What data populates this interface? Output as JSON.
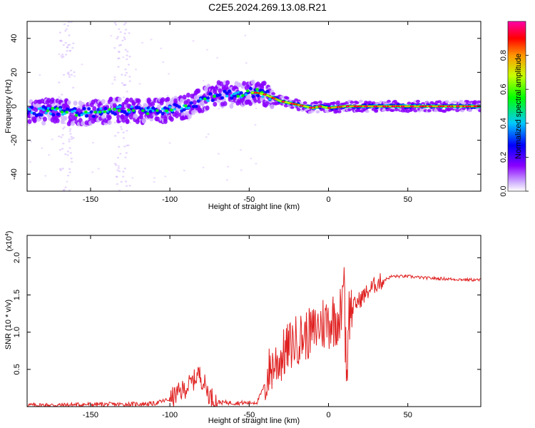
{
  "title": "C2E5.2024.269.13.08.R21",
  "chart_data": [
    {
      "type": "heatmap",
      "xlabel": "Height of straight line (km)",
      "ylabel": "Frequency (Hz)",
      "xlim": [
        -190,
        96
      ],
      "ylim": [
        -50,
        50
      ],
      "xticks": [
        -150,
        -100,
        -50,
        0,
        50
      ],
      "yticks": [
        -40,
        -20,
        0,
        20,
        40
      ],
      "ridge": {
        "x": [
          -190,
          -170,
          -150,
          -130,
          -110,
          -100,
          -90,
          -80,
          -70,
          -60,
          -55,
          -50,
          -45,
          -40,
          -35,
          -30,
          -25,
          -20,
          -15,
          -10,
          -5,
          0,
          10,
          20,
          50,
          96
        ],
        "freq": [
          -3,
          -3,
          -4,
          -2,
          -3,
          -2,
          0,
          3,
          7,
          7,
          6,
          8,
          8,
          7,
          5,
          3,
          2,
          1,
          0,
          -1,
          0,
          -1,
          0,
          0,
          0,
          0
        ]
      },
      "colorbar": {
        "label": "Normalized spectral amplitude",
        "ticks": [
          "0.0",
          "0.2",
          "0.4",
          "0.6",
          "0.8"
        ],
        "stops": [
          "#ffffff",
          "#d2b4ff",
          "#8a00ff",
          "#0000ff",
          "#00c8ff",
          "#00ff00",
          "#c8ff00",
          "#ff9600",
          "#ff0000",
          "#ff00aa"
        ]
      }
    },
    {
      "type": "line",
      "xlabel": "Height of straight line (km)",
      "ylabel": "SNR (10 * v/v)",
      "scale_label": "(x10",
      "scale_exp": "4",
      "scale_close": ")",
      "xlim": [
        -190,
        96
      ],
      "ylim": [
        0,
        2.3
      ],
      "xticks": [
        -150,
        -100,
        -50,
        0,
        50
      ],
      "yticks": [
        "0.5",
        "1.0",
        "1.5",
        "2.0"
      ],
      "series": [
        {
          "name": "SNR",
          "color": "#e02020",
          "x": [
            -190,
            -170,
            -150,
            -130,
            -110,
            -100,
            -90,
            -85,
            -82,
            -78,
            -75,
            -70,
            -60,
            -50,
            -45,
            -40,
            -38,
            -35,
            -30,
            -25,
            -20,
            -15,
            -10,
            -5,
            0,
            5,
            8,
            10,
            11,
            12,
            14,
            18,
            25,
            30,
            40,
            50,
            60,
            70,
            80,
            96
          ],
          "y": [
            0.02,
            0.02,
            0.03,
            0.03,
            0.04,
            0.1,
            0.25,
            0.35,
            0.45,
            0.3,
            0.15,
            0.06,
            0.05,
            0.05,
            0.06,
            0.3,
            0.45,
            0.55,
            0.65,
            0.8,
            0.9,
            0.95,
            1.0,
            1.1,
            1.15,
            1.2,
            1.25,
            1.3,
            0.5,
            1.2,
            1.3,
            1.4,
            1.55,
            1.65,
            1.75,
            1.75,
            1.73,
            1.72,
            1.71,
            1.7
          ]
        }
      ]
    }
  ]
}
